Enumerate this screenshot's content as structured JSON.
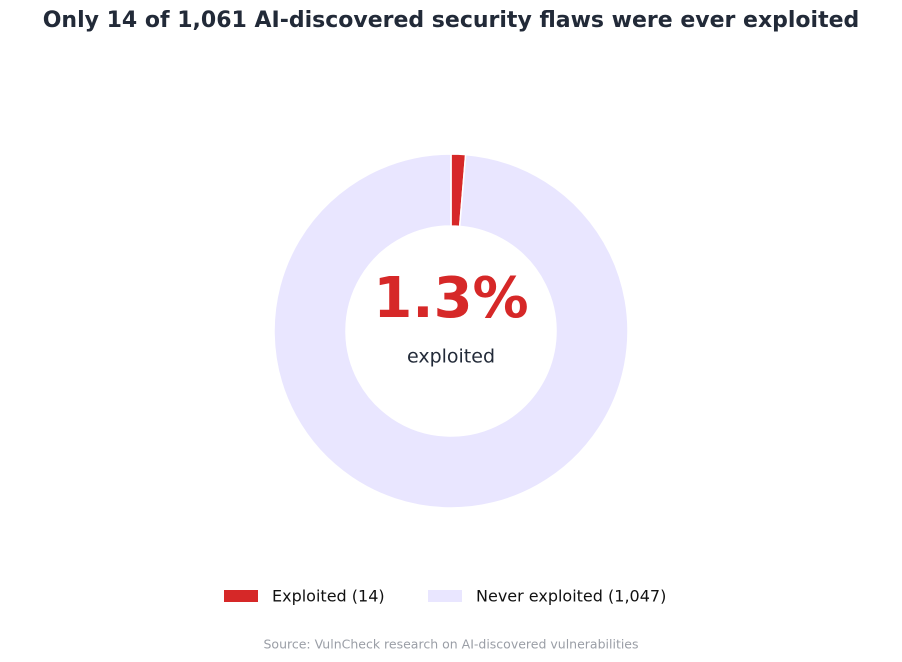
{
  "chart_data": {
    "type": "donut",
    "title": "Only 14 of 1,061 AI-discovered security flaws were ever exploited",
    "categories": [
      "Exploited (14)",
      "Never exploited (1,047)"
    ],
    "values": [
      14,
      1047
    ],
    "colors": [
      "#d62828",
      "#e9e6ff"
    ],
    "center_label": "1.3%",
    "center_sublabel": "exploited",
    "source": "Source: VulnCheck research on AI-discovered vulnerabilities"
  }
}
